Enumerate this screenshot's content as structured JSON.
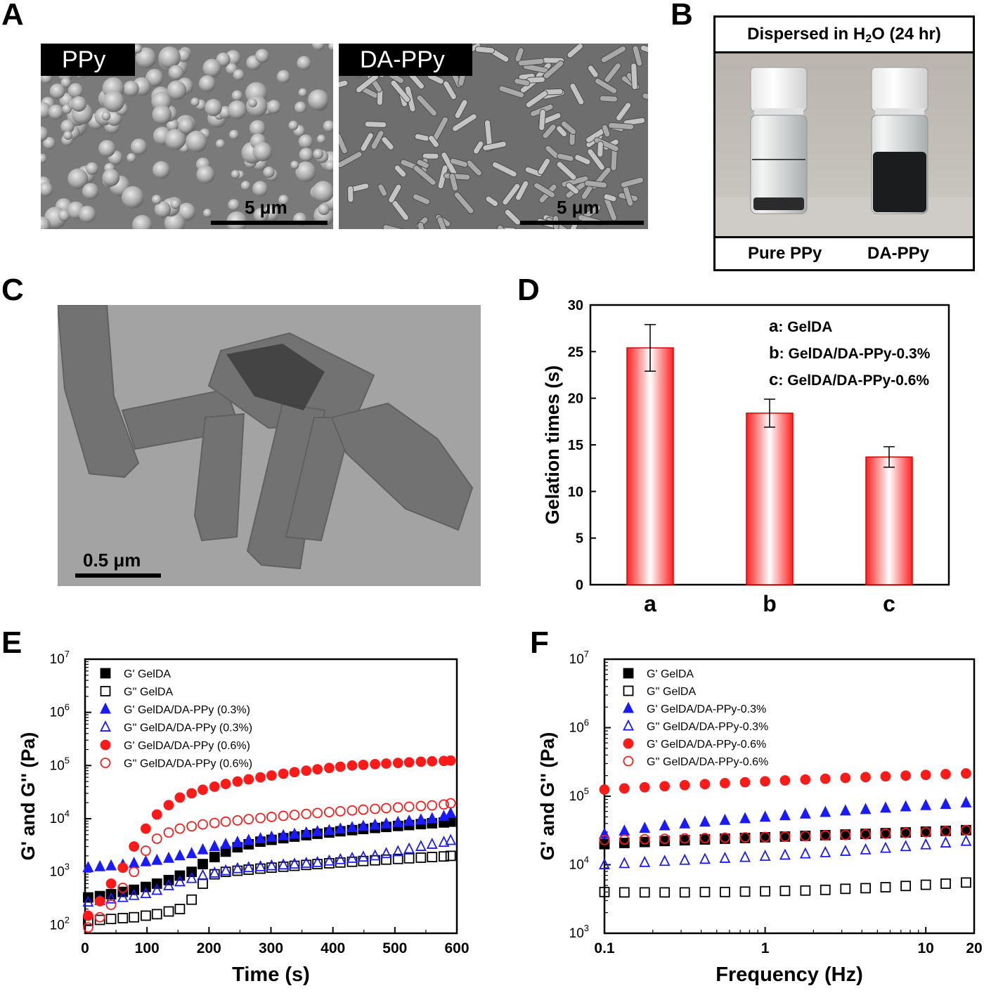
{
  "panels": {
    "A": {
      "letter": "A",
      "left_label": "PPy",
      "right_label": "DA-PPy",
      "left_scale": "5 μm",
      "right_scale": "5 μm"
    },
    "B": {
      "letter": "B",
      "title_prefix": "Dispersed in H",
      "title_sub": "2",
      "title_suffix": "O (24 hr)",
      "left_caption": "Pure PPy",
      "right_caption": "DA-PPy"
    },
    "C": {
      "letter": "C",
      "scale": "0.5 μm"
    },
    "D": {
      "letter": "D"
    },
    "E": {
      "letter": "E"
    },
    "F": {
      "letter": "F"
    }
  },
  "colors": {
    "red": "#ff1a1a",
    "blue": "#1a1aff",
    "black": "#000000"
  },
  "chart_data": [
    {
      "id": "D",
      "type": "bar",
      "categories": [
        "a",
        "b",
        "c"
      ],
      "values": [
        25.4,
        18.4,
        13.7
      ],
      "errors": [
        2.5,
        1.5,
        1.1
      ],
      "ylabel": "Gelation times (s)",
      "ylim": [
        0,
        30
      ],
      "yticks": [
        0,
        5,
        10,
        15,
        20,
        25,
        30
      ],
      "legend": [
        {
          "key": "a",
          "text": "GelDA"
        },
        {
          "key": "b",
          "text": "GelDA/DA-PPy-0.3%"
        },
        {
          "key": "c",
          "text": "GelDA/DA-PPy-0.6%"
        }
      ]
    },
    {
      "id": "E",
      "type": "scatter",
      "scale_y": "log",
      "xlabel": "Time (s)",
      "ylabel": "G' and G'' (Pa)",
      "xlim": [
        0,
        600
      ],
      "xticks": [
        0,
        100,
        200,
        300,
        400,
        500,
        600
      ],
      "ylim": [
        70,
        10000000
      ],
      "yticks": [
        100,
        1000,
        10000,
        100000,
        1000000,
        10000000
      ],
      "ytick_base": "10",
      "ytick_exps": [
        "2",
        "3",
        "4",
        "5",
        "6",
        "7"
      ],
      "x": [
        5,
        24,
        42,
        61,
        79,
        98,
        116,
        135,
        153,
        172,
        190,
        209,
        227,
        246,
        264,
        283,
        301,
        320,
        338,
        357,
        375,
        394,
        412,
        431,
        449,
        468,
        486,
        505,
        523,
        542,
        560,
        579,
        590
      ],
      "series": [
        {
          "name": "G'  GelDA",
          "marker": "square",
          "filled": true,
          "color": "#000000",
          "values": [
            330,
            350,
            380,
            420,
            460,
            520,
            600,
            700,
            850,
            1000,
            1400,
            1900,
            2400,
            2900,
            3300,
            3700,
            4000,
            4300,
            4600,
            4900,
            5200,
            5500,
            5800,
            6100,
            6400,
            6700,
            7000,
            7300,
            7600,
            7900,
            8200,
            8500,
            8800
          ]
        },
        {
          "name": "G''  GelDA",
          "marker": "square",
          "filled": false,
          "color": "#000000",
          "values": [
            120,
            125,
            130,
            135,
            140,
            150,
            160,
            180,
            200,
            300,
            600,
            900,
            1000,
            1050,
            1100,
            1150,
            1200,
            1250,
            1300,
            1350,
            1400,
            1450,
            1500,
            1550,
            1600,
            1650,
            1700,
            1750,
            1800,
            1850,
            1900,
            1950,
            2000
          ]
        },
        {
          "name": "G'  GelDA/DA-PPy (0.3%)",
          "marker": "triangle",
          "filled": true,
          "color": "#1a1aff",
          "values": [
            1200,
            1250,
            1300,
            1350,
            1450,
            1550,
            1650,
            1800,
            2000,
            2200,
            2600,
            3000,
            3300,
            3600,
            3900,
            4200,
            4500,
            4800,
            5100,
            5400,
            5700,
            6000,
            6400,
            6800,
            7200,
            7600,
            8000,
            8500,
            9000,
            9500,
            10000,
            11000,
            12500
          ]
        },
        {
          "name": "G''  GelDA/DA-PPy (0.3%)",
          "marker": "triangle",
          "filled": false,
          "color": "#1a1aff",
          "values": [
            270,
            290,
            310,
            330,
            360,
            390,
            450,
            550,
            650,
            750,
            850,
            950,
            1050,
            1150,
            1200,
            1250,
            1300,
            1350,
            1400,
            1450,
            1500,
            1600,
            1700,
            1800,
            1900,
            2000,
            2200,
            2400,
            2700,
            3000,
            3300,
            3600,
            3900
          ]
        },
        {
          "name": "G'  GelDA/DA-PPy (0.6%)",
          "marker": "circle",
          "filled": true,
          "color": "#ff1a1a",
          "values": [
            150,
            280,
            600,
            1200,
            3000,
            6500,
            12000,
            18000,
            25000,
            30000,
            35000,
            40000,
            45000,
            50000,
            55000,
            60000,
            65000,
            70000,
            75000,
            80000,
            85000,
            90000,
            95000,
            100000,
            103000,
            106000,
            109000,
            112000,
            115000,
            118000,
            120000,
            122000,
            124000
          ]
        },
        {
          "name": "G''  GelDA/DA-PPy (0.6%)",
          "marker": "circle",
          "filled": false,
          "color": "#ff1a1a",
          "values": [
            90,
            140,
            240,
            500,
            1000,
            2500,
            4200,
            5500,
            6500,
            7200,
            7800,
            8300,
            8800,
            9300,
            9800,
            10300,
            10800,
            11300,
            11800,
            12300,
            12800,
            13300,
            13800,
            14300,
            14800,
            15300,
            15800,
            16300,
            16800,
            17300,
            17800,
            18500,
            19500
          ]
        }
      ]
    },
    {
      "id": "F",
      "type": "scatter",
      "scale_x": "log",
      "scale_y": "log",
      "xlabel": "Frequency (Hz)",
      "ylabel": "G' and G'' (Pa)",
      "xlim": [
        0.1,
        20
      ],
      "xticks": [
        0.1,
        1,
        10,
        20
      ],
      "xtick_labels": [
        "0.1",
        "1",
        "10",
        "20"
      ],
      "ylim": [
        1000,
        10000000
      ],
      "yticks": [
        1000,
        10000,
        100000,
        1000000,
        10000000
      ],
      "ytick_base": "10",
      "ytick_exps": [
        "3",
        "4",
        "5",
        "6",
        "7"
      ],
      "x": [
        0.1,
        0.133,
        0.178,
        0.237,
        0.316,
        0.422,
        0.562,
        0.75,
        1.0,
        1.33,
        1.78,
        2.37,
        3.16,
        4.22,
        5.62,
        7.5,
        10,
        13.3,
        17.8
      ],
      "series": [
        {
          "name": "G'  GelDA",
          "marker": "square",
          "filled": true,
          "color": "#000000",
          "values": [
            20000,
            20800,
            21500,
            22200,
            22800,
            23400,
            24000,
            24600,
            25200,
            25800,
            26400,
            27000,
            27600,
            28200,
            28900,
            29600,
            30400,
            31200,
            32000
          ]
        },
        {
          "name": "G''  GelDA",
          "marker": "square",
          "filled": false,
          "color": "#000000",
          "values": [
            4000,
            3950,
            3950,
            3950,
            3950,
            4000,
            4000,
            4050,
            4100,
            4150,
            4200,
            4300,
            4450,
            4550,
            4700,
            4900,
            5100,
            5300,
            5500
          ]
        },
        {
          "name": "G'  GelDA/DA-PPy-0.3%",
          "marker": "triangle",
          "filled": true,
          "color": "#1a1aff",
          "values": [
            28000,
            31000,
            34000,
            37000,
            39500,
            42000,
            44500,
            47000,
            49500,
            52000,
            55000,
            58000,
            61000,
            64000,
            67000,
            70000,
            73000,
            76000,
            80000
          ]
        },
        {
          "name": "G''  GelDA/DA-PPy-0.3%",
          "marker": "triangle",
          "filled": false,
          "color": "#1a1aff",
          "values": [
            10000,
            10400,
            10800,
            11200,
            11600,
            12000,
            12400,
            12800,
            13300,
            13800,
            14400,
            15000,
            15700,
            16500,
            17400,
            18400,
            19500,
            20800,
            22000
          ]
        },
        {
          "name": "G'  GelDA/DA-PPy-0.6%",
          "marker": "circle",
          "filled": true,
          "color": "#ff1a1a",
          "values": [
            125000,
            130000,
            135000,
            140000,
            145000,
            150000,
            155000,
            160000,
            165000,
            170000,
            175000,
            180000,
            185000,
            190000,
            195000,
            200000,
            205000,
            210000,
            215000
          ]
        },
        {
          "name": "G''  GelDA/DA-PPy-0.6%",
          "marker": "circle",
          "filled": false,
          "color": "#ff1a1a",
          "values": [
            23000,
            23300,
            23600,
            23900,
            24200,
            24500,
            24800,
            25100,
            25400,
            25800,
            26200,
            26700,
            27200,
            27800,
            28400,
            29100,
            29900,
            30800,
            32000
          ]
        }
      ]
    }
  ]
}
